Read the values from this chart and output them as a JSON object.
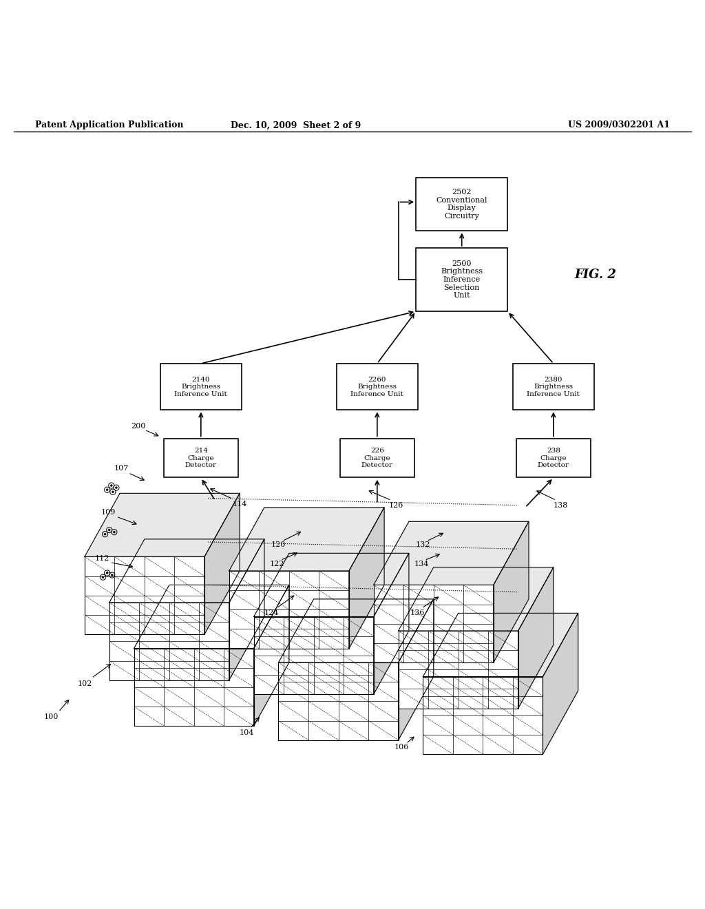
{
  "page_title_left": "Patent Application Publication",
  "page_title_mid": "Dec. 10, 2009  Sheet 2 of 9",
  "page_title_right": "US 2009/0302201 A1",
  "fig_label": "FIG. 2",
  "background_color": "#ffffff"
}
